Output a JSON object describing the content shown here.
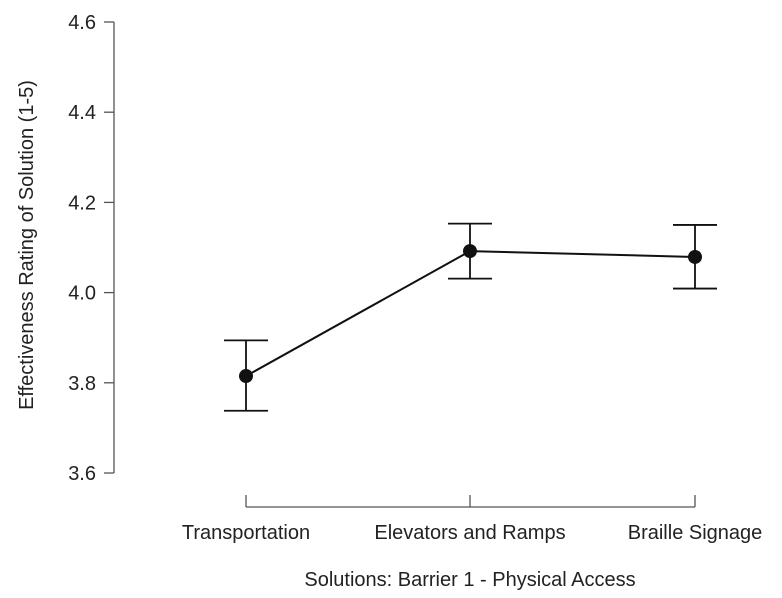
{
  "chart_data": {
    "type": "line",
    "xlabel": "Solutions: Barrier 1 - Physical Access",
    "ylabel": "Effectiveness Rating of Solution (1-5)",
    "categories": [
      "Transportation",
      "Elevators and Ramps",
      "Braille Signage"
    ],
    "ylim": [
      3.6,
      4.6
    ],
    "yticks": [
      "3.6",
      "3.8",
      "4.0",
      "4.2",
      "4.4",
      "4.6"
    ],
    "series": [
      {
        "values": [
          3.815,
          4.092,
          4.079
        ],
        "error_lower": [
          3.738,
          4.031,
          4.009
        ],
        "error_upper": [
          3.894,
          4.153,
          4.15
        ]
      }
    ],
    "grid": false,
    "colors": {
      "line": "#111111",
      "axis": "#555555"
    }
  }
}
